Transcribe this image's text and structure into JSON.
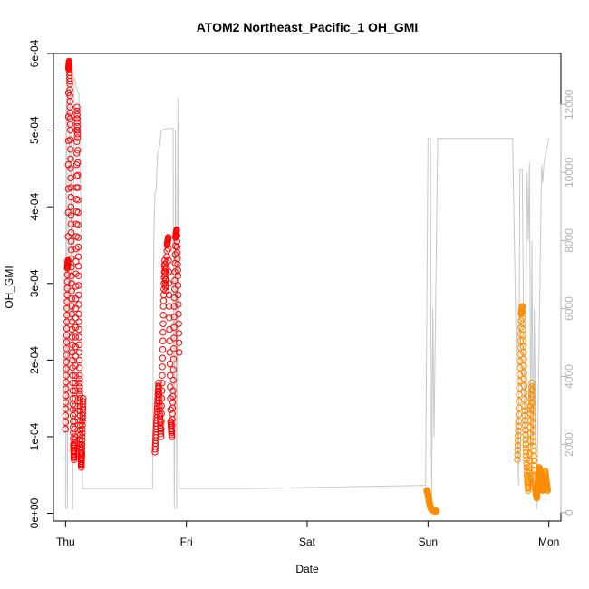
{
  "chart_data": {
    "type": "scatter",
    "title": "ATOM2 Northeast_Pacific_1 OH_GMI",
    "xlabel": "Date",
    "ylabel": "OH_GMI",
    "x_ticks": [
      "Thu",
      "Fri",
      "Sat",
      "Sun",
      "Mon"
    ],
    "xlim": [
      -0.1,
      4.1
    ],
    "ylim": [
      -1e-05,
      0.0006
    ],
    "y_ticks": [
      "0e+00",
      "1e-04",
      "2e-04",
      "3e-04",
      "4e-04",
      "5e-04",
      "6e-04"
    ],
    "y2lim": [
      -250,
      13500
    ],
    "y2_ticks": [
      "0",
      "2000",
      "4000",
      "6000",
      "8000",
      "10000",
      "12000"
    ],
    "grid": false,
    "colors": {
      "series_red": "#ff0000",
      "series_orange": "#ff8c00",
      "altitude_line": "#c8c8c8",
      "right_axis": "#b3b3b3"
    },
    "series": [
      {
        "color": "red",
        "points": [
          [
            0.0,
            0.00011
          ],
          [
            0.005,
            0.00018
          ],
          [
            0.01,
            0.00025
          ],
          [
            0.015,
            0.00032
          ],
          [
            0.02,
            0.00033
          ],
          [
            0.025,
            0.00058
          ],
          [
            0.03,
            0.00059
          ],
          [
            0.035,
            0.00056
          ],
          [
            0.04,
            0.0005
          ],
          [
            0.045,
            0.0004
          ],
          [
            0.05,
            0.00031
          ],
          [
            0.055,
            0.00023
          ],
          [
            0.06,
            0.00015
          ],
          [
            0.065,
            9e-05
          ],
          [
            0.07,
            7e-05
          ],
          [
            0.075,
            0.0001
          ],
          [
            0.08,
            0.00018
          ],
          [
            0.085,
            0.00028
          ],
          [
            0.09,
            0.00041
          ],
          [
            0.095,
            0.00053
          ],
          [
            0.1,
            0.00049
          ],
          [
            0.105,
            0.00036
          ],
          [
            0.11,
            0.00026
          ],
          [
            0.115,
            0.00018
          ],
          [
            0.12,
            0.00014
          ],
          [
            0.125,
            9e-05
          ],
          [
            0.13,
            6e-05
          ],
          [
            0.135,
            8e-05
          ],
          [
            0.14,
            0.00012
          ],
          [
            0.145,
            0.00015
          ],
          [
            0.74,
            8e-05
          ],
          [
            0.75,
            0.00011
          ],
          [
            0.76,
            0.00014
          ],
          [
            0.77,
            0.00017
          ],
          [
            0.78,
            0.00013
          ],
          [
            0.79,
            0.0001
          ],
          [
            0.8,
            0.00018
          ],
          [
            0.81,
            0.00027
          ],
          [
            0.82,
            0.00033
          ],
          [
            0.83,
            0.00029
          ],
          [
            0.84,
            0.00035
          ],
          [
            0.85,
            0.00036
          ],
          [
            0.86,
            0.00024
          ],
          [
            0.87,
            0.00012
          ],
          [
            0.88,
            0.0001
          ],
          [
            0.89,
            0.00016
          ],
          [
            0.9,
            0.00027
          ],
          [
            0.91,
            0.00036
          ],
          [
            0.92,
            0.00037
          ],
          [
            0.93,
            0.00031
          ],
          [
            0.94,
            0.00021
          ]
        ]
      },
      {
        "color": "orange",
        "points": [
          [
            2.99,
            3e-05
          ],
          [
            3.0,
            2.5e-05
          ],
          [
            3.01,
            1.5e-05
          ],
          [
            3.02,
            8e-06
          ],
          [
            3.03,
            5e-06
          ],
          [
            3.04,
            4e-06
          ],
          [
            3.05,
            3e-06
          ],
          [
            3.07,
            3e-06
          ],
          [
            3.74,
            7e-05
          ],
          [
            3.75,
            0.00012
          ],
          [
            3.76,
            0.00019
          ],
          [
            3.77,
            0.00026
          ],
          [
            3.78,
            0.00027
          ],
          [
            3.79,
            0.00021
          ],
          [
            3.8,
            0.00014
          ],
          [
            3.81,
            9e-05
          ],
          [
            3.82,
            5e-05
          ],
          [
            3.83,
            3e-05
          ],
          [
            3.84,
            6e-05
          ],
          [
            3.85,
            0.00013
          ],
          [
            3.86,
            0.00017
          ],
          [
            3.87,
            0.0001
          ],
          [
            3.88,
            5e-05
          ],
          [
            3.89,
            3e-05
          ],
          [
            3.9,
            2e-05
          ],
          [
            3.91,
            4e-05
          ],
          [
            3.92,
            6e-05
          ],
          [
            3.93,
            5e-05
          ],
          [
            3.94,
            3.5e-05
          ],
          [
            3.95,
            3e-05
          ],
          [
            3.96,
            4e-05
          ],
          [
            3.97,
            5.5e-05
          ],
          [
            3.98,
            4e-05
          ],
          [
            3.99,
            3e-05
          ]
        ]
      }
    ],
    "altitude": [
      [
        0.0,
        100
      ],
      [
        0.005,
        11800
      ],
      [
        0.01,
        12500
      ],
      [
        0.015,
        100
      ],
      [
        0.02,
        4000
      ],
      [
        0.03,
        11500
      ],
      [
        0.04,
        12600
      ],
      [
        0.05,
        6000
      ],
      [
        0.06,
        100
      ],
      [
        0.07,
        12800
      ],
      [
        0.08,
        12700
      ],
      [
        0.09,
        12500
      ],
      [
        0.1,
        12400
      ],
      [
        0.11,
        12300
      ],
      [
        0.12,
        10000
      ],
      [
        0.13,
        9000
      ],
      [
        0.14,
        700
      ],
      [
        0.6,
        700
      ],
      [
        0.72,
        700
      ],
      [
        0.73,
        8000
      ],
      [
        0.74,
        9400
      ],
      [
        0.75,
        9500
      ],
      [
        0.76,
        10500
      ],
      [
        0.78,
        10800
      ],
      [
        0.79,
        11200
      ],
      [
        0.8,
        11250
      ],
      [
        0.83,
        11280
      ],
      [
        0.86,
        11300
      ],
      [
        0.89,
        11300
      ],
      [
        0.9,
        100
      ],
      [
        0.91,
        11250
      ],
      [
        0.92,
        100
      ],
      [
        0.93,
        12200
      ],
      [
        0.94,
        700
      ],
      [
        1.5,
        700
      ],
      [
        2.98,
        800
      ],
      [
        3.0,
        11000
      ],
      [
        3.02,
        11000
      ],
      [
        3.03,
        400
      ],
      [
        3.04,
        6000
      ],
      [
        3.05,
        2200
      ],
      [
        3.08,
        11000
      ],
      [
        3.5,
        11000
      ],
      [
        3.7,
        11000
      ],
      [
        3.75,
        800
      ],
      [
        3.76,
        10100
      ],
      [
        3.78,
        10100
      ],
      [
        3.8,
        2000
      ],
      [
        3.82,
        10000
      ],
      [
        3.83,
        8000
      ],
      [
        3.84,
        10300
      ],
      [
        3.85,
        2000
      ],
      [
        3.86,
        8000
      ],
      [
        3.87,
        2000
      ],
      [
        3.88,
        6000
      ],
      [
        3.89,
        2000
      ],
      [
        3.9,
        100
      ],
      [
        3.94,
        10200
      ],
      [
        3.95,
        9700
      ],
      [
        3.96,
        10300
      ],
      [
        4.0,
        11000
      ]
    ]
  }
}
